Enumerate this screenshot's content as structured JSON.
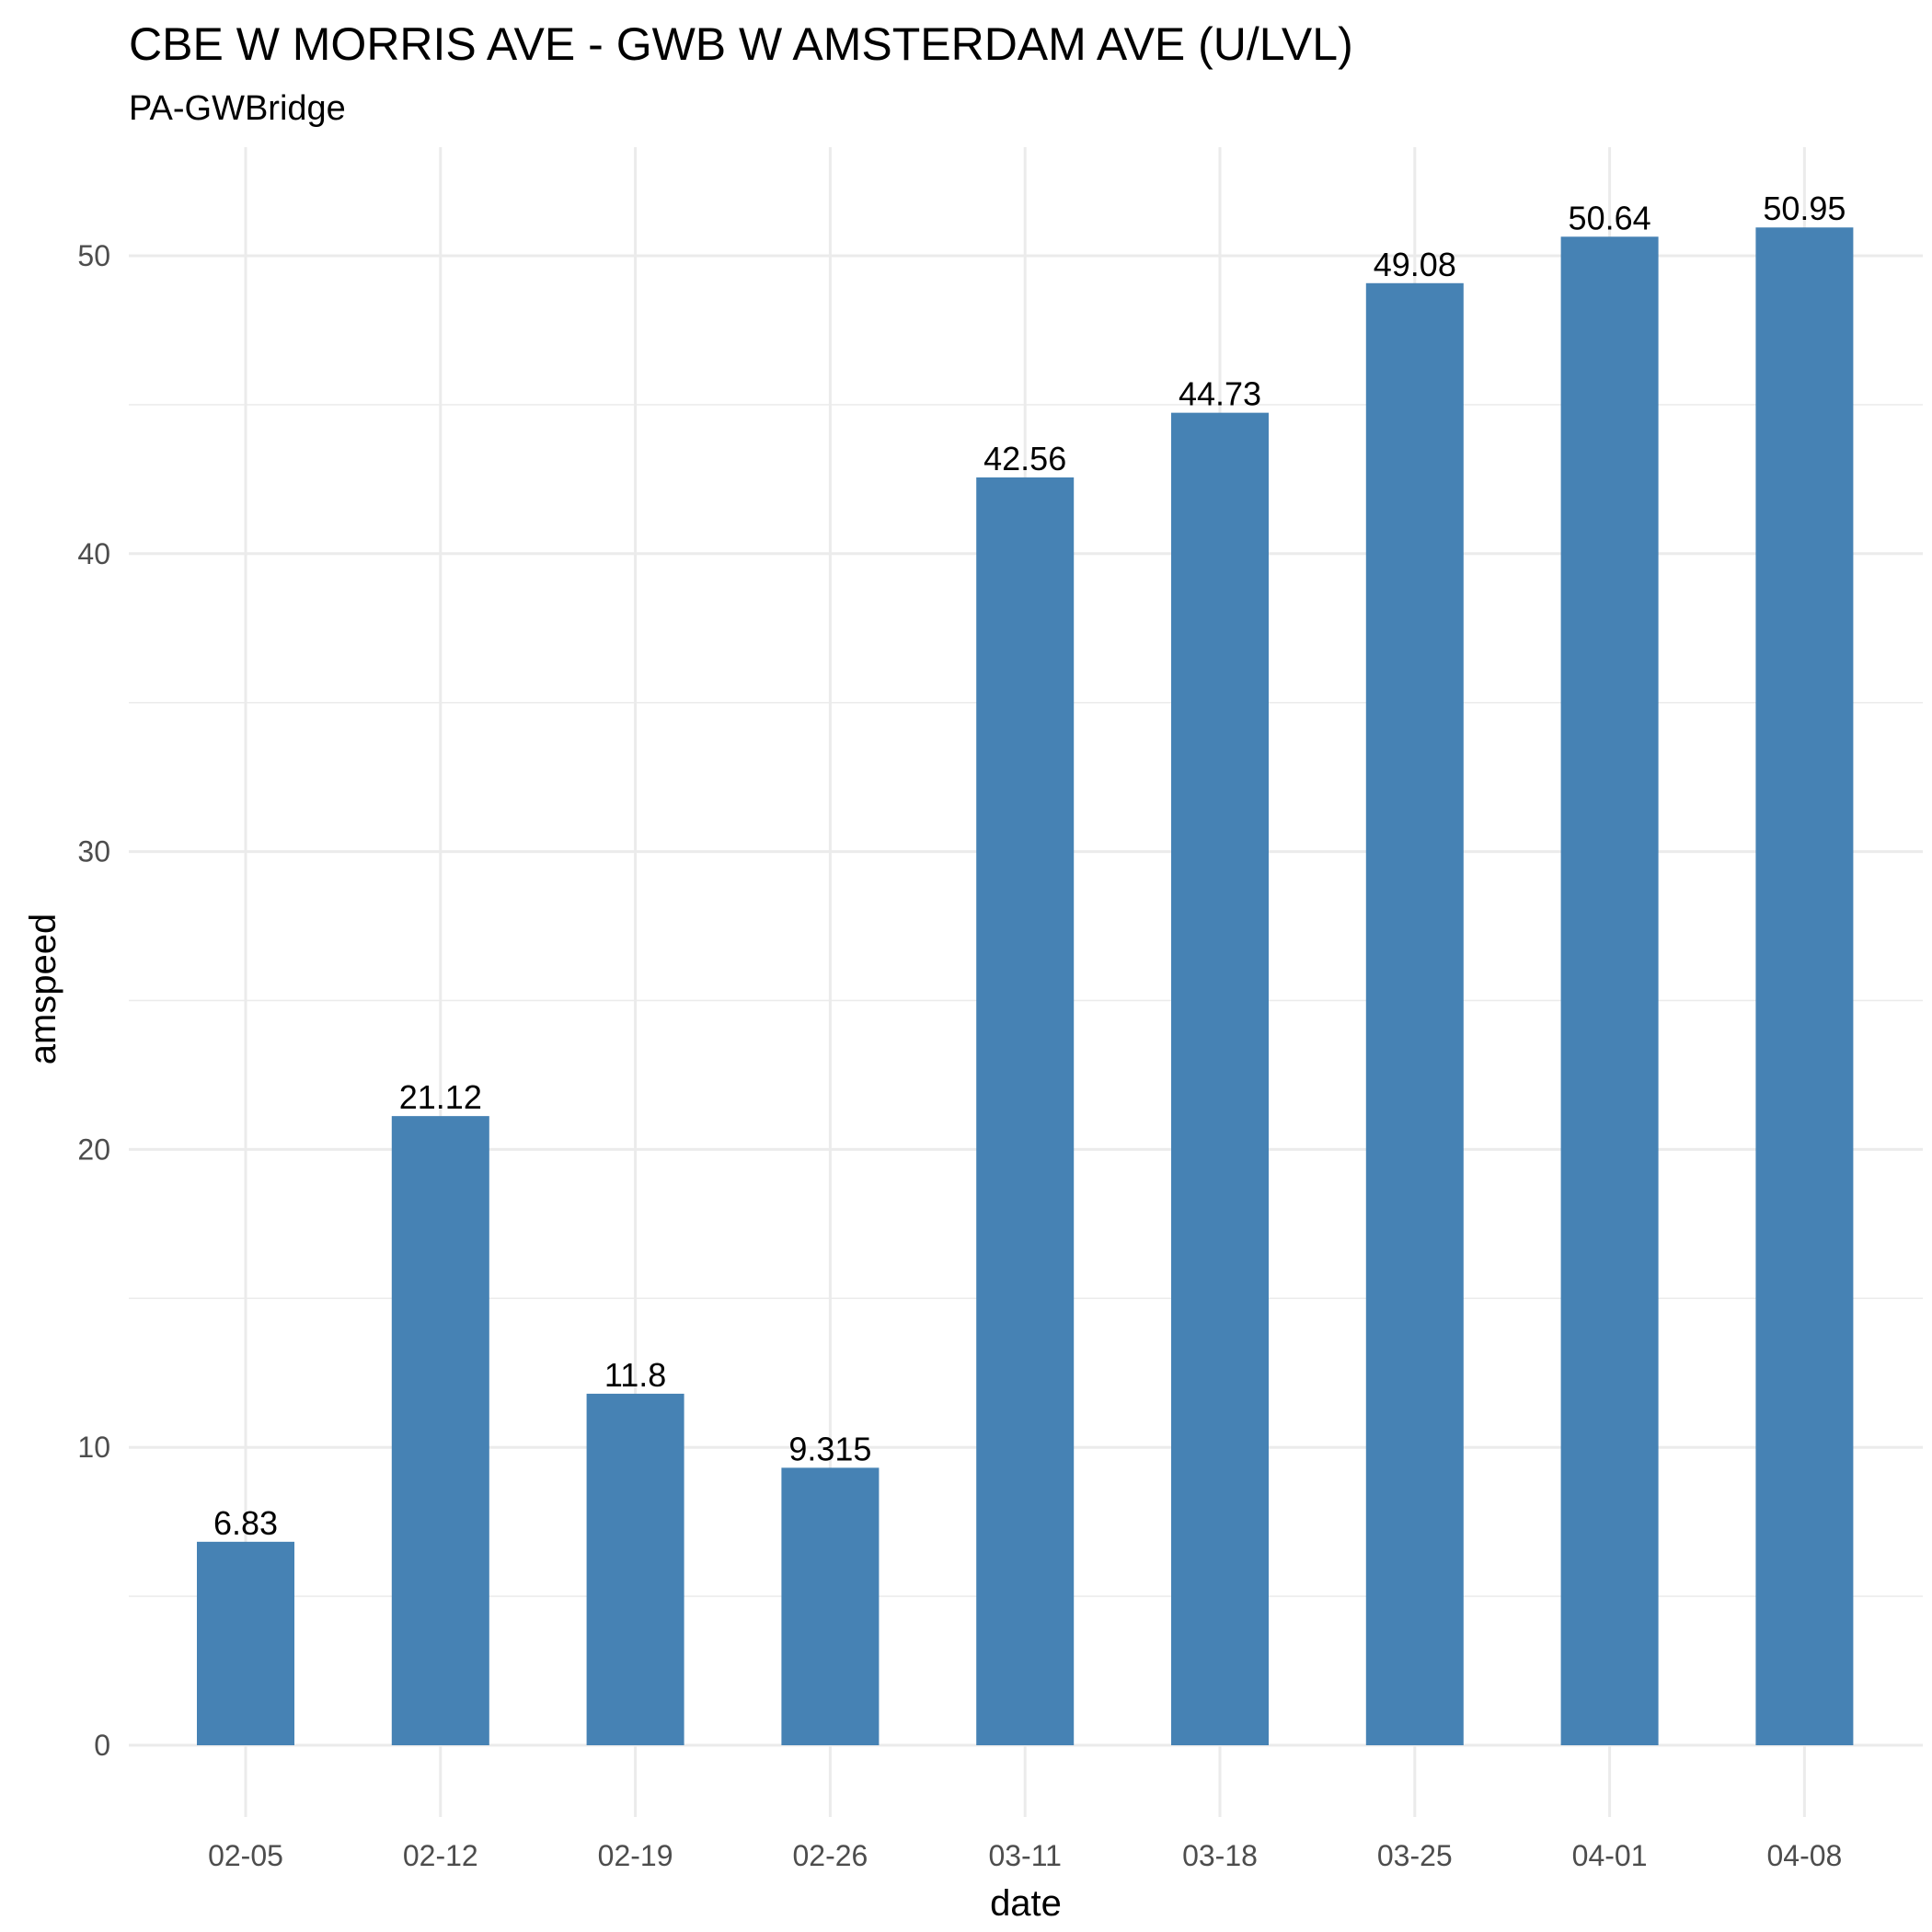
{
  "chart_data": {
    "type": "bar",
    "title": "CBE W MORRIS AVE - GWB W AMSTERDAM AVE (U/LVL)",
    "subtitle": "PA-GWBridge",
    "xlabel": "date",
    "ylabel": "amspeed",
    "categories": [
      "02-05",
      "02-12",
      "02-19",
      "02-26",
      "03-11",
      "03-18",
      "03-25",
      "04-01",
      "04-08"
    ],
    "values": [
      6.83,
      21.12,
      11.8,
      9.315,
      42.56,
      44.73,
      49.08,
      50.64,
      50.95
    ],
    "value_labels": [
      "6.83",
      "21.12",
      "11.8",
      "9.315",
      "42.56",
      "44.73",
      "49.08",
      "50.64",
      "50.95"
    ],
    "ylim": [
      0,
      53
    ],
    "yticks": [
      0,
      10,
      20,
      30,
      40,
      50
    ],
    "grid": true,
    "legend": "none",
    "colors": {
      "bar": "#4682b4",
      "grid": "#ebebeb",
      "tick_text": "#4d4d4d",
      "text": "#000000"
    }
  }
}
